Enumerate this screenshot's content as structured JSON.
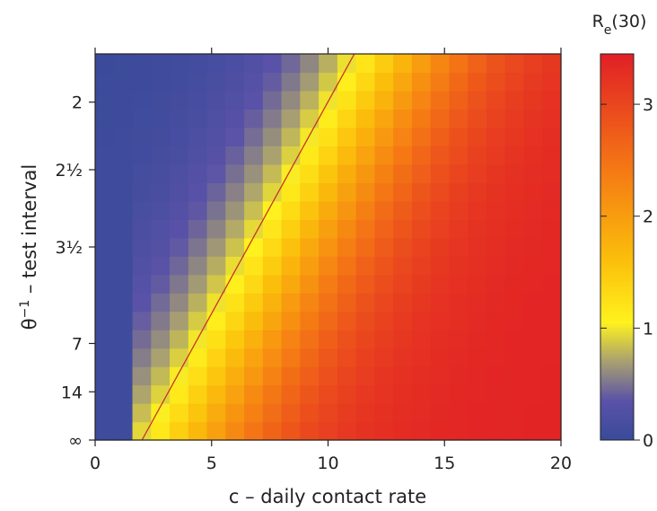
{
  "chart_data": {
    "type": "heatmap",
    "xlabel": "c – daily contact rate",
    "ylabel_main": "θ",
    "ylabel_sup": "−1",
    "ylabel_rest": " – test interval",
    "x_ticks": [
      "0",
      "5",
      "10",
      "15",
      "20"
    ],
    "xlim": [
      0,
      20
    ],
    "y_ticks": [
      {
        "label": "2"
      },
      {
        "label": "2½"
      },
      {
        "label": "3½"
      },
      {
        "label": "7"
      },
      {
        "label": "14"
      },
      {
        "label": "∞"
      }
    ],
    "y_tick_theta": [
      0.5,
      0.4,
      0.2857,
      0.1429,
      0.0714,
      0
    ],
    "theta_range": [
      0,
      0.5714
    ],
    "grid_cols": 25,
    "grid_rows": 21,
    "colorbar": {
      "title_main": "R",
      "title_sub": "e",
      "title_rest": "(30)",
      "ticks": [
        "0",
        "1",
        "2",
        "3"
      ],
      "tick_values": [
        0,
        1,
        2,
        3
      ],
      "range": [
        0,
        3.45
      ],
      "colors": [
        "#3a4a9a",
        "#5a52a8",
        "#a8a070",
        "#fff21e",
        "#fbbf0b",
        "#f57a14",
        "#e11f26"
      ],
      "stops": [
        0,
        0.35,
        0.7,
        1.05,
        1.6,
        2.4,
        3.45
      ]
    },
    "threshold_line": {
      "value": 1,
      "color": "#c62828"
    },
    "model": {
      "Rmax": 3.4,
      "scale": 0.42,
      "slope": 38,
      "steep": 2.5
    }
  }
}
